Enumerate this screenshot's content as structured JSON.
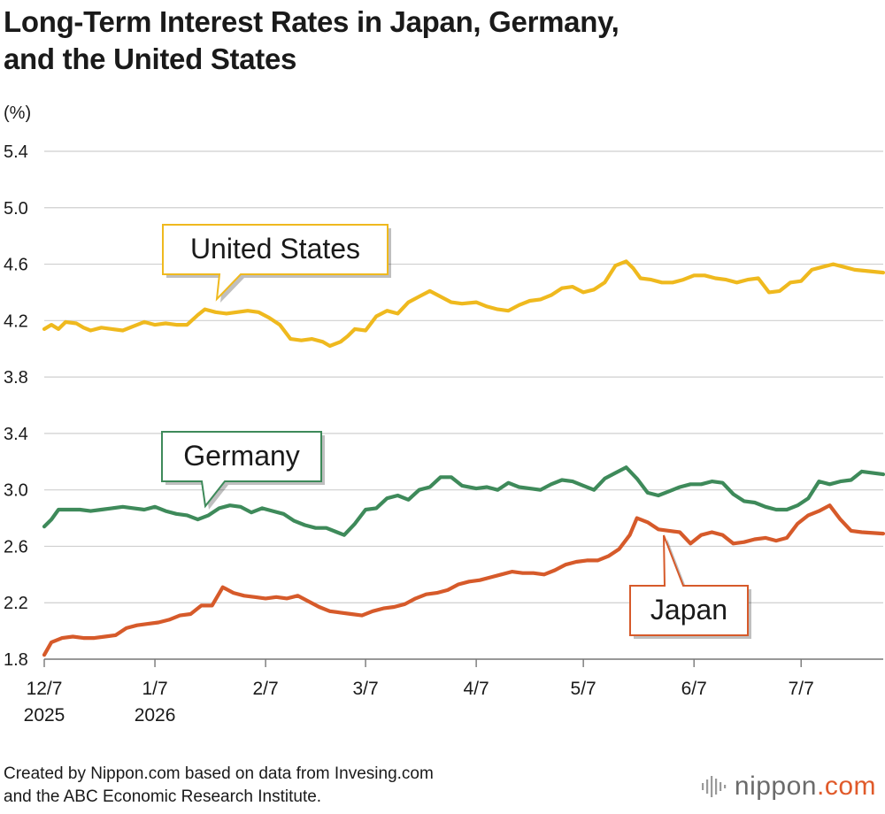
{
  "title_lines": [
    "Long-Term Interest Rates in Japan, Germany,",
    "and the United States"
  ],
  "footer": {
    "line1": "Created by Nippon.com based on data from Invesing.com",
    "line2": "and the ABC Economic Research Institute."
  },
  "logo": {
    "name": "nippon",
    "suffix": ".com",
    "accent": "#e05a2a"
  },
  "chart_data": {
    "type": "line",
    "title": "Long-Term Interest Rates in Japan, Germany, and the United States",
    "ylabel": "(%)",
    "ylim": [
      1.8,
      5.5
    ],
    "yticks": [
      1.8,
      2.2,
      2.6,
      3.0,
      3.4,
      3.8,
      4.2,
      4.6,
      5.0,
      5.4
    ],
    "ytick_labels": [
      "1.8",
      "2.2",
      "2.6",
      "3.0",
      "3.4",
      "3.8",
      "4.2",
      "4.6",
      "5.0",
      "5.4"
    ],
    "x_start": "2025-12-07",
    "x_end": "2026-07-30",
    "xticks": [
      {
        "date": "2025-12-07",
        "label": "12/7",
        "year": "2025"
      },
      {
        "date": "2026-01-07",
        "label": "1/7",
        "year": "2026"
      },
      {
        "date": "2026-02-07",
        "label": "2/7",
        "year": ""
      },
      {
        "date": "2026-03-07",
        "label": "3/7",
        "year": ""
      },
      {
        "date": "2026-04-07",
        "label": "4/7",
        "year": ""
      },
      {
        "date": "2026-05-07",
        "label": "5/7",
        "year": ""
      },
      {
        "date": "2026-06-07",
        "label": "6/7",
        "year": ""
      },
      {
        "date": "2026-07-07",
        "label": "7/7",
        "year": ""
      }
    ],
    "grid": true,
    "series": [
      {
        "name": "United States",
        "color": "#efb91e",
        "points": [
          [
            "2025-12-07",
            4.14
          ],
          [
            "2025-12-09",
            4.17
          ],
          [
            "2025-12-11",
            4.14
          ],
          [
            "2025-12-13",
            4.19
          ],
          [
            "2025-12-16",
            4.18
          ],
          [
            "2025-12-18",
            4.15
          ],
          [
            "2025-12-20",
            4.13
          ],
          [
            "2025-12-23",
            4.15
          ],
          [
            "2025-12-26",
            4.14
          ],
          [
            "2025-12-29",
            4.13
          ],
          [
            "2026-01-01",
            4.16
          ],
          [
            "2026-01-04",
            4.19
          ],
          [
            "2026-01-07",
            4.17
          ],
          [
            "2026-01-10",
            4.18
          ],
          [
            "2026-01-13",
            4.17
          ],
          [
            "2026-01-16",
            4.17
          ],
          [
            "2026-01-19",
            4.24
          ],
          [
            "2026-01-21",
            4.28
          ],
          [
            "2026-01-24",
            4.26
          ],
          [
            "2026-01-27",
            4.25
          ],
          [
            "2026-01-30",
            4.26
          ],
          [
            "2026-02-02",
            4.27
          ],
          [
            "2026-02-05",
            4.26
          ],
          [
            "2026-02-08",
            4.22
          ],
          [
            "2026-02-11",
            4.17
          ],
          [
            "2026-02-14",
            4.07
          ],
          [
            "2026-02-17",
            4.06
          ],
          [
            "2026-02-20",
            4.07
          ],
          [
            "2026-02-23",
            4.05
          ],
          [
            "2026-02-25",
            4.02
          ],
          [
            "2026-02-28",
            4.05
          ],
          [
            "2026-03-02",
            4.09
          ],
          [
            "2026-03-04",
            4.14
          ],
          [
            "2026-03-07",
            4.13
          ],
          [
            "2026-03-10",
            4.23
          ],
          [
            "2026-03-13",
            4.27
          ],
          [
            "2026-03-16",
            4.25
          ],
          [
            "2026-03-19",
            4.33
          ],
          [
            "2026-03-22",
            4.37
          ],
          [
            "2026-03-25",
            4.41
          ],
          [
            "2026-03-28",
            4.37
          ],
          [
            "2026-03-31",
            4.33
          ],
          [
            "2026-04-03",
            4.32
          ],
          [
            "2026-04-07",
            4.33
          ],
          [
            "2026-04-10",
            4.3
          ],
          [
            "2026-04-13",
            4.28
          ],
          [
            "2026-04-16",
            4.27
          ],
          [
            "2026-04-19",
            4.31
          ],
          [
            "2026-04-22",
            4.34
          ],
          [
            "2026-04-25",
            4.35
          ],
          [
            "2026-04-28",
            4.38
          ],
          [
            "2026-05-01",
            4.43
          ],
          [
            "2026-05-04",
            4.44
          ],
          [
            "2026-05-07",
            4.4
          ],
          [
            "2026-05-10",
            4.42
          ],
          [
            "2026-05-13",
            4.47
          ],
          [
            "2026-05-16",
            4.59
          ],
          [
            "2026-05-19",
            4.62
          ],
          [
            "2026-05-21",
            4.57
          ],
          [
            "2026-05-23",
            4.5
          ],
          [
            "2026-05-26",
            4.49
          ],
          [
            "2026-05-29",
            4.47
          ],
          [
            "2026-06-01",
            4.47
          ],
          [
            "2026-06-04",
            4.49
          ],
          [
            "2026-06-07",
            4.52
          ],
          [
            "2026-06-10",
            4.52
          ],
          [
            "2026-06-13",
            4.5
          ],
          [
            "2026-06-16",
            4.49
          ],
          [
            "2026-06-19",
            4.47
          ],
          [
            "2026-06-22",
            4.49
          ],
          [
            "2026-06-25",
            4.5
          ],
          [
            "2026-06-28",
            4.4
          ],
          [
            "2026-07-01",
            4.41
          ],
          [
            "2026-07-04",
            4.47
          ],
          [
            "2026-07-07",
            4.48
          ],
          [
            "2026-07-10",
            4.56
          ],
          [
            "2026-07-13",
            4.58
          ],
          [
            "2026-07-16",
            4.6
          ],
          [
            "2026-07-19",
            4.58
          ],
          [
            "2026-07-22",
            4.56
          ],
          [
            "2026-07-30",
            4.54
          ]
        ]
      },
      {
        "name": "Germany",
        "color": "#3e8a5a",
        "points": [
          [
            "2025-12-07",
            2.74
          ],
          [
            "2025-12-09",
            2.79
          ],
          [
            "2025-12-11",
            2.86
          ],
          [
            "2025-12-14",
            2.86
          ],
          [
            "2025-12-17",
            2.86
          ],
          [
            "2025-12-20",
            2.85
          ],
          [
            "2025-12-23",
            2.86
          ],
          [
            "2025-12-26",
            2.87
          ],
          [
            "2025-12-29",
            2.88
          ],
          [
            "2026-01-01",
            2.87
          ],
          [
            "2026-01-04",
            2.86
          ],
          [
            "2026-01-07",
            2.88
          ],
          [
            "2026-01-10",
            2.85
          ],
          [
            "2026-01-13",
            2.83
          ],
          [
            "2026-01-16",
            2.82
          ],
          [
            "2026-01-19",
            2.79
          ],
          [
            "2026-01-22",
            2.82
          ],
          [
            "2026-01-25",
            2.87
          ],
          [
            "2026-01-28",
            2.89
          ],
          [
            "2026-01-31",
            2.88
          ],
          [
            "2026-02-03",
            2.84
          ],
          [
            "2026-02-06",
            2.87
          ],
          [
            "2026-02-09",
            2.85
          ],
          [
            "2026-02-12",
            2.83
          ],
          [
            "2026-02-15",
            2.78
          ],
          [
            "2026-02-18",
            2.75
          ],
          [
            "2026-02-21",
            2.73
          ],
          [
            "2026-02-24",
            2.73
          ],
          [
            "2026-02-27",
            2.7
          ],
          [
            "2026-03-01",
            2.68
          ],
          [
            "2026-03-04",
            2.76
          ],
          [
            "2026-03-07",
            2.86
          ],
          [
            "2026-03-10",
            2.87
          ],
          [
            "2026-03-13",
            2.94
          ],
          [
            "2026-03-16",
            2.96
          ],
          [
            "2026-03-19",
            2.93
          ],
          [
            "2026-03-22",
            3.0
          ],
          [
            "2026-03-25",
            3.02
          ],
          [
            "2026-03-28",
            3.09
          ],
          [
            "2026-03-31",
            3.09
          ],
          [
            "2026-04-03",
            3.03
          ],
          [
            "2026-04-07",
            3.01
          ],
          [
            "2026-04-10",
            3.02
          ],
          [
            "2026-04-13",
            3.0
          ],
          [
            "2026-04-16",
            3.05
          ],
          [
            "2026-04-19",
            3.02
          ],
          [
            "2026-04-22",
            3.01
          ],
          [
            "2026-04-25",
            3.0
          ],
          [
            "2026-04-28",
            3.04
          ],
          [
            "2026-05-01",
            3.07
          ],
          [
            "2026-05-04",
            3.06
          ],
          [
            "2026-05-07",
            3.03
          ],
          [
            "2026-05-10",
            3.0
          ],
          [
            "2026-05-13",
            3.08
          ],
          [
            "2026-05-16",
            3.12
          ],
          [
            "2026-05-19",
            3.16
          ],
          [
            "2026-05-22",
            3.08
          ],
          [
            "2026-05-25",
            2.98
          ],
          [
            "2026-05-28",
            2.96
          ],
          [
            "2026-05-31",
            2.99
          ],
          [
            "2026-06-03",
            3.02
          ],
          [
            "2026-06-06",
            3.04
          ],
          [
            "2026-06-09",
            3.04
          ],
          [
            "2026-06-12",
            3.06
          ],
          [
            "2026-06-15",
            3.05
          ],
          [
            "2026-06-18",
            2.97
          ],
          [
            "2026-06-21",
            2.92
          ],
          [
            "2026-06-24",
            2.91
          ],
          [
            "2026-06-27",
            2.88
          ],
          [
            "2026-06-30",
            2.86
          ],
          [
            "2026-07-03",
            2.86
          ],
          [
            "2026-07-06",
            2.89
          ],
          [
            "2026-07-09",
            2.94
          ],
          [
            "2026-07-12",
            3.06
          ],
          [
            "2026-07-15",
            3.04
          ],
          [
            "2026-07-18",
            3.06
          ],
          [
            "2026-07-21",
            3.07
          ],
          [
            "2026-07-24",
            3.13
          ],
          [
            "2026-07-30",
            3.11
          ]
        ]
      },
      {
        "name": "Japan",
        "color": "#d65a2a",
        "points": [
          [
            "2025-12-07",
            1.83
          ],
          [
            "2025-12-09",
            1.92
          ],
          [
            "2025-12-12",
            1.95
          ],
          [
            "2025-12-15",
            1.96
          ],
          [
            "2025-12-18",
            1.95
          ],
          [
            "2025-12-21",
            1.95
          ],
          [
            "2025-12-24",
            1.96
          ],
          [
            "2025-12-27",
            1.97
          ],
          [
            "2025-12-30",
            2.02
          ],
          [
            "2026-01-02",
            2.04
          ],
          [
            "2026-01-05",
            2.05
          ],
          [
            "2026-01-08",
            2.06
          ],
          [
            "2026-01-11",
            2.08
          ],
          [
            "2026-01-14",
            2.11
          ],
          [
            "2026-01-17",
            2.12
          ],
          [
            "2026-01-20",
            2.18
          ],
          [
            "2026-01-23",
            2.18
          ],
          [
            "2026-01-26",
            2.31
          ],
          [
            "2026-01-29",
            2.27
          ],
          [
            "2026-02-01",
            2.25
          ],
          [
            "2026-02-04",
            2.24
          ],
          [
            "2026-02-07",
            2.23
          ],
          [
            "2026-02-10",
            2.24
          ],
          [
            "2026-02-13",
            2.23
          ],
          [
            "2026-02-16",
            2.25
          ],
          [
            "2026-02-19",
            2.21
          ],
          [
            "2026-02-22",
            2.17
          ],
          [
            "2026-02-25",
            2.14
          ],
          [
            "2026-02-28",
            2.13
          ],
          [
            "2026-03-03",
            2.12
          ],
          [
            "2026-03-06",
            2.11
          ],
          [
            "2026-03-09",
            2.14
          ],
          [
            "2026-03-12",
            2.16
          ],
          [
            "2026-03-15",
            2.17
          ],
          [
            "2026-03-18",
            2.19
          ],
          [
            "2026-03-21",
            2.23
          ],
          [
            "2026-03-24",
            2.26
          ],
          [
            "2026-03-27",
            2.27
          ],
          [
            "2026-03-30",
            2.29
          ],
          [
            "2026-04-02",
            2.33
          ],
          [
            "2026-04-05",
            2.35
          ],
          [
            "2026-04-08",
            2.36
          ],
          [
            "2026-04-11",
            2.38
          ],
          [
            "2026-04-14",
            2.4
          ],
          [
            "2026-04-17",
            2.42
          ],
          [
            "2026-04-20",
            2.41
          ],
          [
            "2026-04-23",
            2.41
          ],
          [
            "2026-04-26",
            2.4
          ],
          [
            "2026-04-29",
            2.43
          ],
          [
            "2026-05-02",
            2.47
          ],
          [
            "2026-05-05",
            2.49
          ],
          [
            "2026-05-08",
            2.5
          ],
          [
            "2026-05-11",
            2.5
          ],
          [
            "2026-05-14",
            2.53
          ],
          [
            "2026-05-17",
            2.58
          ],
          [
            "2026-05-20",
            2.68
          ],
          [
            "2026-05-22",
            2.8
          ],
          [
            "2026-05-25",
            2.77
          ],
          [
            "2026-05-28",
            2.72
          ],
          [
            "2026-05-31",
            2.71
          ],
          [
            "2026-06-03",
            2.7
          ],
          [
            "2026-06-06",
            2.62
          ],
          [
            "2026-06-09",
            2.68
          ],
          [
            "2026-06-12",
            2.7
          ],
          [
            "2026-06-15",
            2.68
          ],
          [
            "2026-06-18",
            2.62
          ],
          [
            "2026-06-21",
            2.63
          ],
          [
            "2026-06-24",
            2.65
          ],
          [
            "2026-06-27",
            2.66
          ],
          [
            "2026-06-30",
            2.64
          ],
          [
            "2026-07-03",
            2.66
          ],
          [
            "2026-07-06",
            2.76
          ],
          [
            "2026-07-09",
            2.82
          ],
          [
            "2026-07-12",
            2.85
          ],
          [
            "2026-07-15",
            2.89
          ],
          [
            "2026-07-18",
            2.79
          ],
          [
            "2026-07-21",
            2.71
          ],
          [
            "2026-07-24",
            2.7
          ],
          [
            "2026-07-30",
            2.69
          ]
        ]
      }
    ],
    "callouts": [
      {
        "series": "United States",
        "label": "United States",
        "color": "#efb91e"
      },
      {
        "series": "Germany",
        "label": "Germany",
        "color": "#3e8a5a"
      },
      {
        "series": "Japan",
        "label": "Japan",
        "color": "#d65a2a"
      }
    ]
  }
}
